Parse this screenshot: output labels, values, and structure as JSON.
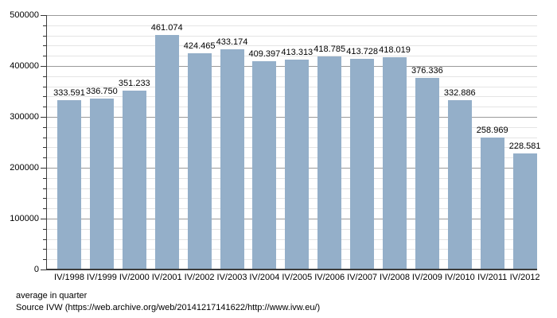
{
  "chart_data": {
    "type": "bar",
    "title": "",
    "xlabel": "",
    "ylabel": "",
    "categories": [
      "IV/1998",
      "IV/1999",
      "IV/2000",
      "IV/2001",
      "IV/2002",
      "IV/2003",
      "IV/2004",
      "IV/2005",
      "IV/2006",
      "IV/2007",
      "IV/2008",
      "IV/2009",
      "IV/2010",
      "IV/2011",
      "IV/2012"
    ],
    "values": [
      333591,
      336750,
      351233,
      461074,
      424465,
      433174,
      409397,
      413313,
      418785,
      413728,
      418019,
      376336,
      332886,
      258969,
      228581
    ],
    "value_labels": [
      "333.591",
      "336.750",
      "351.233",
      "461.074",
      "424.465",
      "433.174",
      "409.397",
      "413.313",
      "418.785",
      "413.728",
      "418.019",
      "376.336",
      "332.886",
      "258.969",
      "228.581"
    ],
    "ylim": [
      0,
      500000
    ],
    "y_major_step": 100000,
    "y_minor_step": 20000,
    "y_tick_labels": [
      "0",
      "100000",
      "200000",
      "300000",
      "400000",
      "500000"
    ],
    "grid": "on",
    "legend": "none",
    "bar_color": "#94afc9",
    "minor_grid_color": "#e4e4e4",
    "major_grid_color": "#9a9a9a",
    "axis_color": "#3c3c3c"
  },
  "footer": {
    "note": "average in quarter",
    "source": "Source IVW (https://web.archive.org/web/20141217141622/http://www.ivw.eu/)"
  }
}
